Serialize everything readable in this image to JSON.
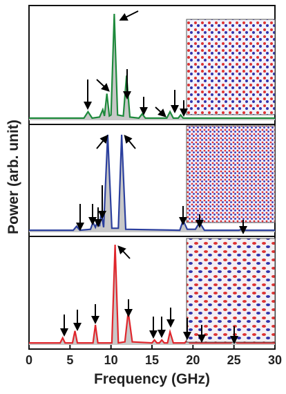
{
  "chart_data": [
    {
      "type": "line",
      "color": "#1e8a3c",
      "xlim": [
        0,
        30
      ],
      "ylim": [
        0,
        1
      ],
      "x": [
        0,
        6.7,
        7.2,
        7.7,
        8.6,
        9.0,
        9.2,
        9.5,
        9.8,
        10.0,
        10.4,
        10.8,
        11.5,
        11.9,
        12.3,
        13.4,
        13.8,
        14.2,
        16.8,
        17.2,
        17.6,
        18.2,
        18.5,
        18.8,
        30
      ],
      "values": [
        0.02,
        0.02,
        0.08,
        0.02,
        0.03,
        0.1,
        0.04,
        0.25,
        0.04,
        0.05,
        1.0,
        0.05,
        0.04,
        0.42,
        0.03,
        0.02,
        0.06,
        0.02,
        0.02,
        0.08,
        0.02,
        0.02,
        0.05,
        0.02,
        0.02
      ]
    },
    {
      "type": "line",
      "color": "#2b3f9e",
      "xlim": [
        0,
        30
      ],
      "ylim": [
        0,
        1
      ],
      "ylabel": "Power (arb. unit)",
      "x": [
        0,
        5.4,
        5.8,
        6.2,
        7.5,
        7.8,
        8.1,
        8.4,
        8.6,
        8.8,
        9.1,
        9.6,
        10.1,
        10.9,
        11.3,
        11.8,
        18.4,
        18.8,
        19.3,
        20.3,
        20.8,
        21.4,
        25.6,
        26,
        26.4,
        30
      ],
      "values": [
        0.02,
        0.02,
        0.06,
        0.02,
        0.03,
        0.1,
        0.05,
        0.12,
        0.06,
        0.2,
        0.05,
        0.98,
        0.04,
        0.04,
        0.98,
        0.03,
        0.02,
        0.12,
        0.03,
        0.03,
        0.1,
        0.02,
        0.02,
        0.03,
        0.02,
        0.02
      ]
    },
    {
      "type": "line",
      "color": "#e0262c",
      "xlim": [
        0,
        30
      ],
      "ylim": [
        0,
        1
      ],
      "xlabel": "Frequency (GHz)",
      "xticks": [
        0,
        5,
        10,
        15,
        20,
        25,
        30
      ],
      "x": [
        0,
        3.8,
        4.1,
        4.4,
        5.3,
        5.6,
        5.9,
        7.8,
        8.1,
        8.4,
        10.1,
        10.5,
        10.9,
        11.7,
        12.1,
        12.6,
        15.0,
        15.3,
        15.6,
        15.9,
        16.2,
        16.5,
        16.9,
        17.2,
        17.6,
        19.0,
        19.3,
        19.6,
        24.6,
        25,
        25.4,
        30
      ],
      "values": [
        0.02,
        0.02,
        0.07,
        0.02,
        0.02,
        0.14,
        0.02,
        0.02,
        0.2,
        0.02,
        0.02,
        1.0,
        0.02,
        0.03,
        0.33,
        0.03,
        0.02,
        0.05,
        0.02,
        0.02,
        0.05,
        0.02,
        0.02,
        0.13,
        0.02,
        0.02,
        0.05,
        0.02,
        0.02,
        0.04,
        0.02,
        0.02
      ]
    }
  ]
}
